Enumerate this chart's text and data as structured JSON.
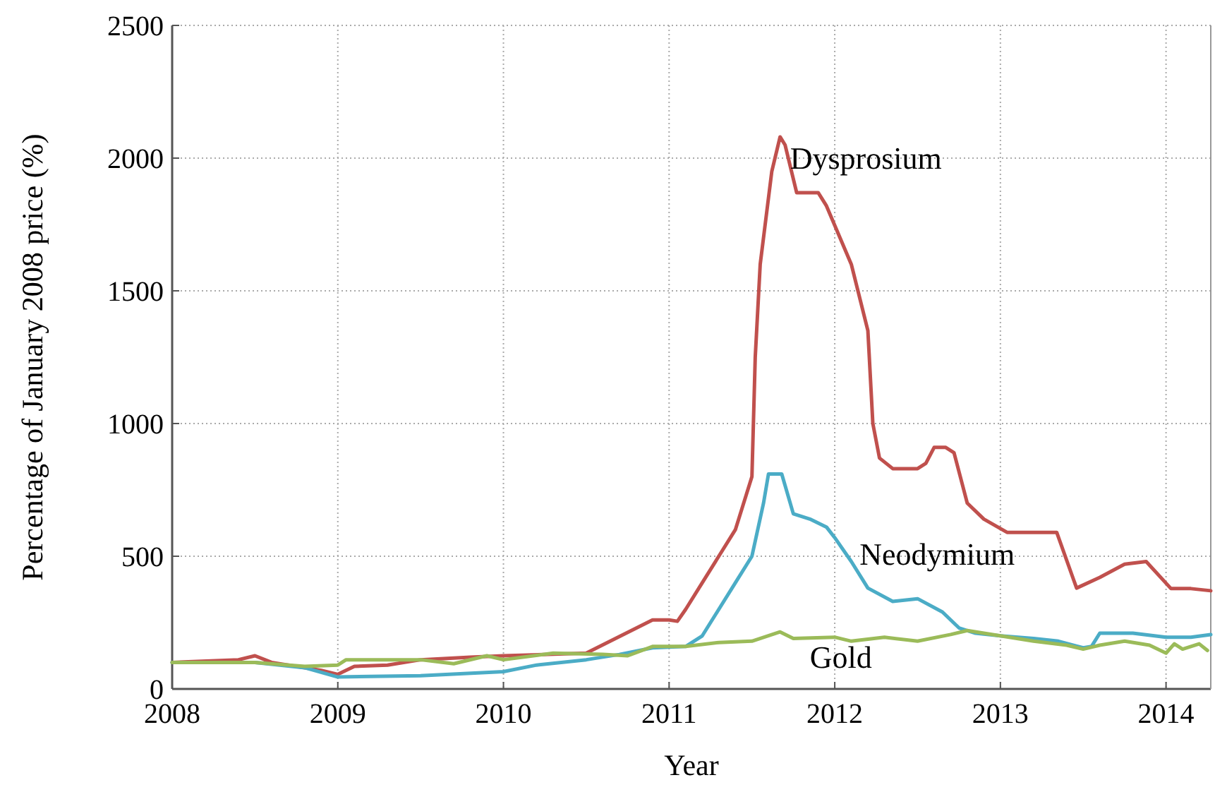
{
  "chart_data": {
    "type": "line",
    "xlabel": "Year",
    "ylabel": "Percentage of January 2008 price (%)",
    "xlim": [
      2008,
      2014.27
    ],
    "xticks": [
      2008,
      2009,
      2010,
      2011,
      2012,
      2013,
      2014
    ],
    "ylim": [
      0,
      2500
    ],
    "yticks": [
      0,
      500,
      1000,
      1500,
      2000,
      2500
    ],
    "grid": true,
    "line_style": "solid",
    "series": [
      {
        "name": "Dysprosium",
        "color": "#c0504d",
        "x": [
          2008,
          2008.4,
          2008.5,
          2008.6,
          2008.9,
          2009.0,
          2009.1,
          2009.3,
          2009.5,
          2009.8,
          2010.0,
          2010.5,
          2010.9,
          2011.0,
          2011.05,
          2011.1,
          2011.2,
          2011.4,
          2011.5,
          2011.52,
          2011.55,
          2011.62,
          2011.67,
          2011.7,
          2011.77,
          2011.9,
          2011.95,
          2012.1,
          2012.2,
          2012.23,
          2012.27,
          2012.35,
          2012.5,
          2012.55,
          2012.6,
          2012.67,
          2012.72,
          2012.8,
          2012.9,
          2013.04,
          2013.34,
          2013.46,
          2013.6,
          2013.75,
          2013.88,
          2014.03,
          2014.15,
          2014.27
        ],
        "values": [
          100,
          110,
          125,
          100,
          70,
          55,
          85,
          90,
          110,
          120,
          125,
          135,
          260,
          260,
          255,
          300,
          400,
          600,
          800,
          1250,
          1600,
          1950,
          2080,
          2050,
          1870,
          1870,
          1820,
          1600,
          1350,
          1000,
          870,
          830,
          830,
          850,
          910,
          910,
          890,
          700,
          640,
          590,
          590,
          380,
          420,
          470,
          480,
          378,
          378,
          370
        ]
      },
      {
        "name": "Neodymium",
        "color": "#4bacc6",
        "x": [
          2008,
          2008.5,
          2008.8,
          2009.0,
          2009.5,
          2010.0,
          2010.2,
          2010.5,
          2010.7,
          2010.9,
          2011.1,
          2011.2,
          2011.3,
          2011.4,
          2011.5,
          2011.57,
          2011.6,
          2011.68,
          2011.75,
          2011.85,
          2011.95,
          2012.0,
          2012.1,
          2012.2,
          2012.35,
          2012.5,
          2012.65,
          2012.75,
          2012.85,
          2013.0,
          2013.2,
          2013.35,
          2013.5,
          2013.55,
          2013.6,
          2013.8,
          2014.0,
          2014.15,
          2014.27
        ],
        "values": [
          100,
          100,
          80,
          45,
          50,
          65,
          90,
          110,
          130,
          155,
          160,
          200,
          300,
          400,
          500,
          700,
          810,
          810,
          660,
          640,
          610,
          570,
          480,
          380,
          330,
          340,
          290,
          230,
          210,
          200,
          190,
          180,
          155,
          160,
          210,
          210,
          195,
          195,
          205
        ]
      },
      {
        "name": "Gold",
        "color": "#9bbb59",
        "x": [
          2008,
          2008.5,
          2008.8,
          2009.0,
          2009.05,
          2009.5,
          2009.7,
          2009.9,
          2010.0,
          2010.3,
          2010.6,
          2010.75,
          2010.9,
          2011.1,
          2011.3,
          2011.5,
          2011.67,
          2011.75,
          2012.0,
          2012.1,
          2012.3,
          2012.5,
          2012.7,
          2012.8,
          2013.0,
          2013.2,
          2013.4,
          2013.5,
          2013.6,
          2013.75,
          2013.9,
          2014.0,
          2014.05,
          2014.1,
          2014.2,
          2014.25
        ],
        "values": [
          100,
          100,
          85,
          90,
          110,
          110,
          95,
          125,
          110,
          135,
          130,
          125,
          160,
          160,
          175,
          180,
          215,
          190,
          195,
          180,
          195,
          180,
          205,
          220,
          200,
          180,
          165,
          150,
          165,
          180,
          165,
          135,
          170,
          150,
          170,
          145
        ]
      }
    ]
  }
}
